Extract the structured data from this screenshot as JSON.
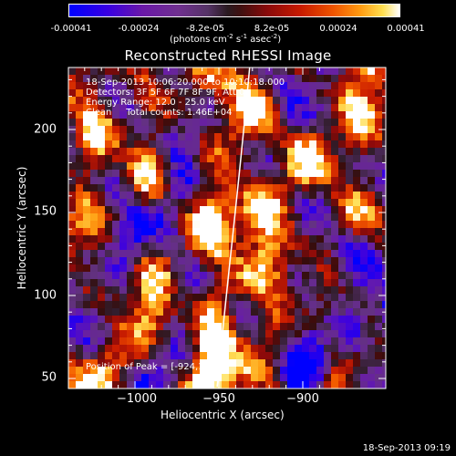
{
  "colorbar": {
    "ticks": [
      "-0.00041",
      "-0.00024",
      "-8.2e-05",
      "8.2e-05",
      "0.00024",
      "0.00041"
    ],
    "unit_main": "(photons cm",
    "unit_sup1": "-2",
    "unit_mid1": " s",
    "unit_sup2": "-1",
    "unit_mid2": " asec",
    "unit_sup3": "-2",
    "unit_close": ")"
  },
  "chart_data": {
    "type": "heatmap",
    "title": "Reconstructed RHESSI Image",
    "xlabel": "Heliocentric X (arcsec)",
    "ylabel": "Heliocentric Y (arcsec)",
    "xlim": [
      -1040,
      -945
    ],
    "ylim": [
      45,
      245
    ],
    "x_ticks": [
      -1000,
      -950,
      -900
    ],
    "x_tick_labels": [
      "−1000",
      "−950",
      "−900"
    ],
    "y_ticks": [
      50,
      100,
      150,
      200
    ],
    "y_tick_labels": [
      "50",
      "100",
      "150",
      "200"
    ],
    "colorbar_range": [
      -0.00041,
      0.00041
    ],
    "peak": [
      -924,
      148
    ],
    "info_lines": [
      "18-Sep-2013 10:06:20.000 to 10:10:18.000",
      "Detectors: 3F 5F 6F 7F 8F 9F, Att 0",
      "Energy Range: 12.0 - 25.0 keV",
      "Clean     Total counts: 1.46E+04"
    ],
    "peak_label": "Position of Peak = [-924,148]",
    "limb_curve": [
      [
        -951,
        45
      ],
      [
        -945,
        110
      ],
      [
        -937,
        175
      ],
      [
        -931,
        245
      ]
    ],
    "timestamp": "18-Sep-2013 09:19"
  }
}
